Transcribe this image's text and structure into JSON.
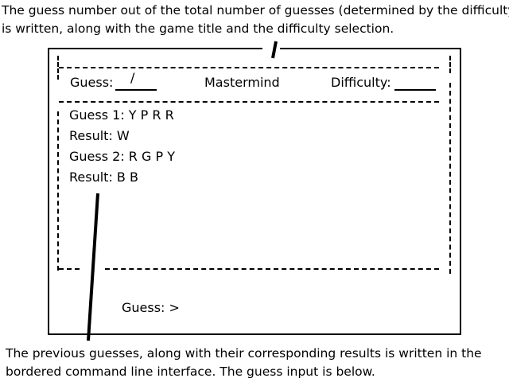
{
  "annotations": {
    "top_line1": "The guess number out of the total number of guesses (determined by the difficulty)",
    "top_line2": "is written, along with the game title and the difficulty selection.",
    "bottom_line1": "The previous guesses, along with their corresponding results is written in the",
    "bottom_line2": "bordered command line interface. The guess input is below."
  },
  "header": {
    "guess_label": "Guess:",
    "guess_value": "/",
    "title": "Mastermind",
    "difficulty_label": "Difficulty:"
  },
  "history": [
    {
      "guess": "Guess 1: Y P R R",
      "result": "Result: W"
    },
    {
      "guess": "Guess 2: R G P Y",
      "result": "Result: B B"
    }
  ],
  "input": {
    "prompt": "Guess: >"
  }
}
